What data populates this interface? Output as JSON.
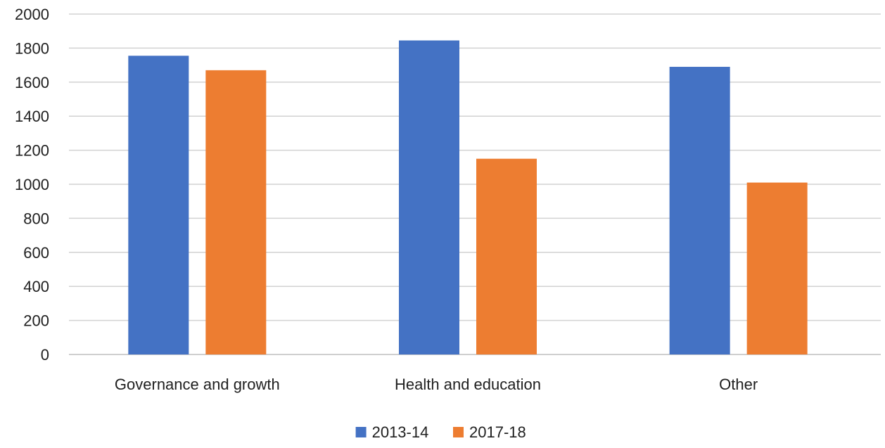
{
  "chart_data": {
    "type": "bar",
    "categories": [
      "Governance and growth",
      "Health and education",
      "Other"
    ],
    "series": [
      {
        "name": "2013-14",
        "values": [
          1755,
          1845,
          1690
        ],
        "color": "#4472c4"
      },
      {
        "name": "2017-18",
        "values": [
          1670,
          1150,
          1010
        ],
        "color": "#ed7d31"
      }
    ],
    "yticks": [
      0,
      200,
      400,
      600,
      800,
      1000,
      1200,
      1400,
      1600,
      1800,
      2000
    ],
    "ylim": [
      0,
      2000
    ],
    "grid": true,
    "legend_position": "bottom",
    "title": "",
    "xlabel": "",
    "ylabel": ""
  }
}
